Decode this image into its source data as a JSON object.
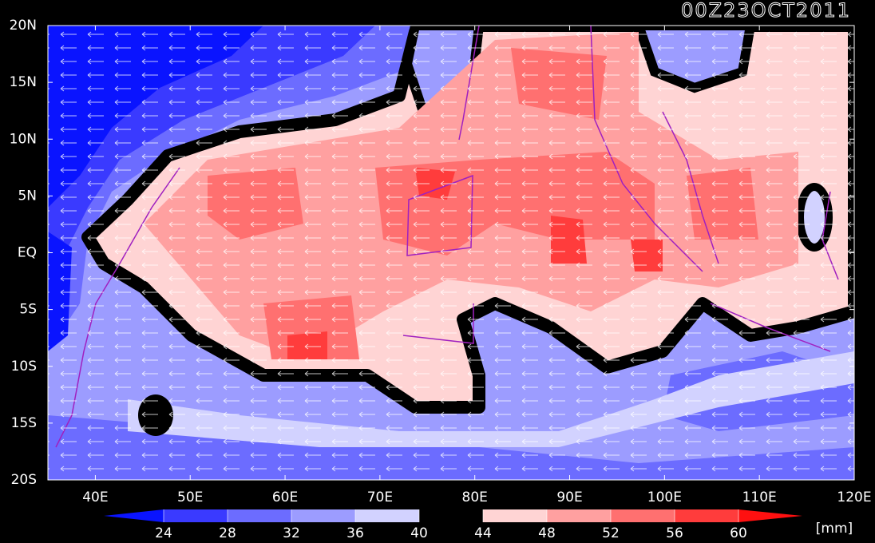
{
  "map": {
    "title": "00Z23OCT2011",
    "xlim": [
      35,
      120
    ],
    "ylim": [
      -20,
      20
    ],
    "xticks": [
      {
        "value": 40,
        "label": "40E"
      },
      {
        "value": 50,
        "label": "50E"
      },
      {
        "value": 60,
        "label": "60E"
      },
      {
        "value": 70,
        "label": "70E"
      },
      {
        "value": 80,
        "label": "80E"
      },
      {
        "value": 90,
        "label": "90E"
      },
      {
        "value": 100,
        "label": "100E"
      },
      {
        "value": 110,
        "label": "110E"
      },
      {
        "value": 120,
        "label": "120E"
      }
    ],
    "yticks": [
      {
        "value": 20,
        "label": "20N"
      },
      {
        "value": 15,
        "label": "15N"
      },
      {
        "value": 10,
        "label": "10N"
      },
      {
        "value": 5,
        "label": "5N"
      },
      {
        "value": 0,
        "label": "EQ"
      },
      {
        "value": -5,
        "label": "5S"
      },
      {
        "value": -10,
        "label": "10S"
      },
      {
        "value": -15,
        "label": "15S"
      },
      {
        "value": -20,
        "label": "20S"
      }
    ],
    "colorbar": {
      "levels": [
        24,
        28,
        32,
        36,
        40,
        44,
        48,
        52,
        56,
        60
      ],
      "colors": [
        "#0a14ff",
        "#3a3aff",
        "#6c6cff",
        "#9c9cff",
        "#d2d2ff",
        "#000000",
        "#ffd4d4",
        "#ffa0a0",
        "#ff7070",
        "#ff3c3c",
        "#ff1010"
      ],
      "unit": "[mm]"
    }
  }
}
